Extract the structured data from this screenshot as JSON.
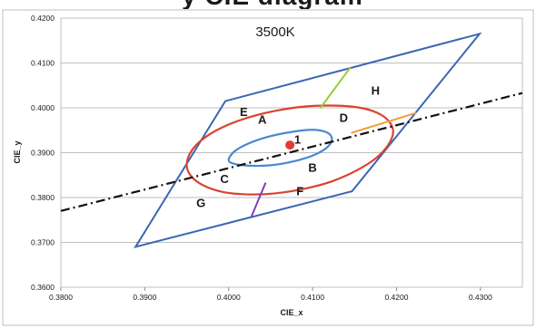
{
  "chart_data": {
    "type": "scatter",
    "title": "3500K",
    "xlabel": "CIE_x",
    "ylabel": "CIE_y",
    "xlim": [
      0.38,
      0.435
    ],
    "ylim": [
      0.36,
      0.42
    ],
    "xticks": [
      "0.3800",
      "0.3900",
      "0.4000",
      "0.4100",
      "0.4200",
      "0.4300"
    ],
    "yticks": [
      "0.3600",
      "0.3700",
      "0.3800",
      "0.3900",
      "0.4000",
      "0.4100",
      "0.4200"
    ],
    "xtick_values": [
      0.38,
      0.39,
      0.4,
      0.41,
      0.42,
      0.43
    ],
    "ytick_values": [
      0.36,
      0.37,
      0.38,
      0.39,
      0.4,
      0.41,
      0.42
    ],
    "grid": "horizontal",
    "quadrangle": {
      "color": "#3a66b3",
      "points": [
        [
          0.3889,
          0.369
        ],
        [
          0.3996,
          0.4015
        ],
        [
          0.4299,
          0.4165
        ],
        [
          0.4147,
          0.3814
        ]
      ]
    },
    "center_point": {
      "x": 0.4073,
      "y": 0.3917,
      "color": "#e53935"
    },
    "outer_ellipse": {
      "color": "#d9432f",
      "points": [
        [
          0.395,
          0.3871
        ],
        [
          0.3955,
          0.3902
        ],
        [
          0.3969,
          0.393
        ],
        [
          0.3992,
          0.3956
        ],
        [
          0.4021,
          0.3977
        ],
        [
          0.4055,
          0.3993
        ],
        [
          0.4091,
          0.4003
        ],
        [
          0.4124,
          0.4005
        ],
        [
          0.4154,
          0.4001
        ],
        [
          0.4177,
          0.3989
        ],
        [
          0.4191,
          0.397
        ],
        [
          0.4196,
          0.3946
        ],
        [
          0.419,
          0.3917
        ],
        [
          0.4175,
          0.3887
        ],
        [
          0.4152,
          0.386
        ],
        [
          0.4123,
          0.3836
        ],
        [
          0.4089,
          0.3819
        ],
        [
          0.4054,
          0.3809
        ],
        [
          0.4022,
          0.3807
        ],
        [
          0.3994,
          0.3812
        ],
        [
          0.3971,
          0.3826
        ],
        [
          0.3956,
          0.3846
        ]
      ]
    },
    "inner_ellipse": {
      "color": "#4a88d0",
      "points": [
        [
          0.4,
          0.3885
        ],
        [
          0.4007,
          0.3903
        ],
        [
          0.4023,
          0.392
        ],
        [
          0.4046,
          0.3935
        ],
        [
          0.4074,
          0.3946
        ],
        [
          0.4099,
          0.3951
        ],
        [
          0.4116,
          0.3946
        ],
        [
          0.4123,
          0.3932
        ],
        [
          0.4118,
          0.3913
        ],
        [
          0.4102,
          0.3895
        ],
        [
          0.4078,
          0.3881
        ],
        [
          0.405,
          0.3872
        ],
        [
          0.4024,
          0.3871
        ],
        [
          0.4005,
          0.3876
        ]
      ]
    },
    "dash_dot_line": {
      "color": "#111111",
      "points": [
        [
          0.38,
          0.377
        ],
        [
          0.435,
          0.4033
        ]
      ]
    },
    "segments": [
      {
        "color": "#9acd32",
        "points": [
          [
            0.4109,
            0.3999
          ],
          [
            0.4145,
            0.409
          ]
        ]
      },
      {
        "color": "#f39c3c",
        "points": [
          [
            0.4146,
            0.3944
          ],
          [
            0.4224,
            0.3989
          ]
        ]
      },
      {
        "color": "#7b3fbf",
        "points": [
          [
            0.4044,
            0.3833
          ],
          [
            0.4027,
            0.3757
          ]
        ]
      }
    ],
    "region_labels": [
      {
        "text": "A",
        "x": 0.404,
        "y": 0.3975
      },
      {
        "text": "B",
        "x": 0.41,
        "y": 0.3868
      },
      {
        "text": "C",
        "x": 0.3995,
        "y": 0.3842
      },
      {
        "text": "D",
        "x": 0.4137,
        "y": 0.3979
      },
      {
        "text": "E",
        "x": 0.4018,
        "y": 0.3992
      },
      {
        "text": "F",
        "x": 0.4085,
        "y": 0.3815
      },
      {
        "text": "G",
        "x": 0.3967,
        "y": 0.3789
      },
      {
        "text": "H",
        "x": 0.4175,
        "y": 0.4039
      },
      {
        "text": "1",
        "x": 0.4082,
        "y": 0.393
      }
    ]
  },
  "banner_text": "y CIE diagram"
}
